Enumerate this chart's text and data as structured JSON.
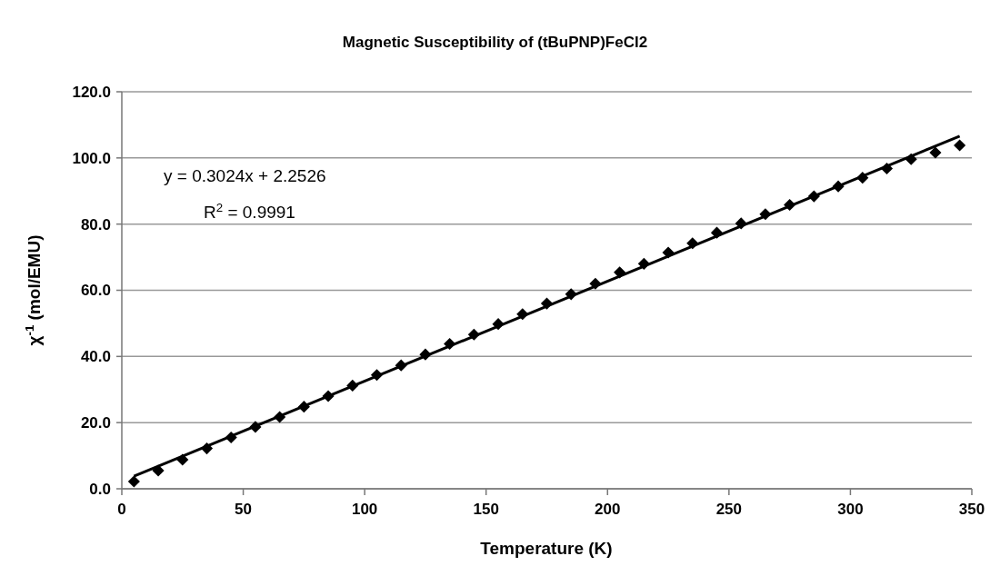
{
  "chart_data": {
    "type": "scatter",
    "title": "Magnetic Susceptibility of (tBuPNP)FeCl2",
    "xlabel": "Temperature (K)",
    "ylabel": "χ$^{-1}$ (mol/EMU)",
    "xlim": [
      0,
      350
    ],
    "xticks": [
      0,
      50,
      100,
      150,
      200,
      250,
      300,
      350
    ],
    "ylim": [
      0,
      120
    ],
    "yticks": [
      {
        "value": 0,
        "label": "0.0"
      },
      {
        "value": 20,
        "label": "20.0"
      },
      {
        "value": 40,
        "label": "40.0"
      },
      {
        "value": 60,
        "label": "60.0"
      },
      {
        "value": 80,
        "label": "80.0"
      },
      {
        "value": 100,
        "label": "100.0"
      },
      {
        "value": 120,
        "label": "120.0"
      }
    ],
    "grid": "y",
    "marker": "diamond",
    "annotations": [
      "y = 0.3024x + 2.2526",
      "R$^{2}$ = 0.9991"
    ],
    "series": [
      {
        "color": "#000000",
        "x": [
          5,
          15,
          25,
          35,
          45,
          55,
          65,
          75,
          85,
          95,
          105,
          115,
          125,
          135,
          145,
          155,
          165,
          175,
          185,
          195,
          205,
          215,
          225,
          235,
          245,
          255,
          265,
          275,
          285,
          295,
          305,
          315,
          325,
          335,
          345
        ],
        "values": [
          2.2,
          5.5,
          8.8,
          12.2,
          15.5,
          18.7,
          21.7,
          24.8,
          28,
          31.2,
          34.4,
          37.3,
          40.6,
          43.8,
          46.6,
          49.8,
          52.8,
          56,
          58.8,
          62,
          65.4,
          68,
          71.4,
          74.2,
          77.4,
          80.2,
          83,
          85.8,
          88.4,
          91.4,
          94,
          96.8,
          99.6,
          101.6,
          103.8
        ]
      },
      {
        "type": "line",
        "color": "#000000",
        "marker": "none",
        "line_style": "solid",
        "x": [
          5,
          345
        ],
        "values": [
          3.8,
          106.6
        ]
      }
    ]
  }
}
